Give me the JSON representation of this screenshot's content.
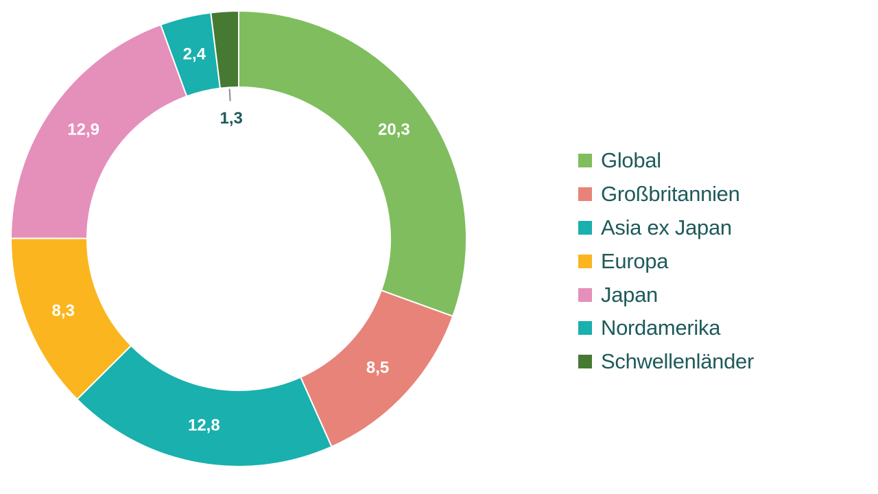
{
  "chart_data": {
    "type": "pie",
    "donut": true,
    "title": "",
    "legend_position": "right",
    "slices": [
      {
        "label": "Global",
        "value": 20.3,
        "display": "20,3",
        "color": "#7fbd5e",
        "label_color": "#ffffff"
      },
      {
        "label": "Großbritannien",
        "value": 8.5,
        "display": "8,5",
        "color": "#e8837a",
        "label_color": "#ffffff"
      },
      {
        "label": "Nordamerika",
        "value": 12.8,
        "display": "12,8",
        "color": "#19b0ad",
        "label_color": "#ffffff"
      },
      {
        "label": "Europa",
        "value": 8.3,
        "display": "8,3",
        "color": "#fbb51f",
        "label_color": "#ffffff"
      },
      {
        "label": "Japan",
        "value": 12.9,
        "display": "12,9",
        "color": "#e58fbb",
        "label_color": "#ffffff"
      },
      {
        "label": "Asia ex Japan",
        "value": 2.4,
        "display": "2,4",
        "color": "#19b0ad",
        "label_color": "#ffffff"
      },
      {
        "label": "Schwellenländer",
        "value": 1.3,
        "display": "1,3",
        "color": "#467a33",
        "label_color": "#1f5a5a",
        "label_outside": true
      }
    ],
    "legend": [
      {
        "label": "Global",
        "color": "#7fbd5e"
      },
      {
        "label": "Großbritannien",
        "color": "#e8837a"
      },
      {
        "label": "Asia ex Japan",
        "color": "#19b0ad"
      },
      {
        "label": "Europa",
        "color": "#fbb51f"
      },
      {
        "label": "Japan",
        "color": "#e58fbb"
      },
      {
        "label": "Nordamerika",
        "color": "#19b0ad"
      },
      {
        "label": "Schwellenländer",
        "color": "#467a33"
      }
    ]
  }
}
